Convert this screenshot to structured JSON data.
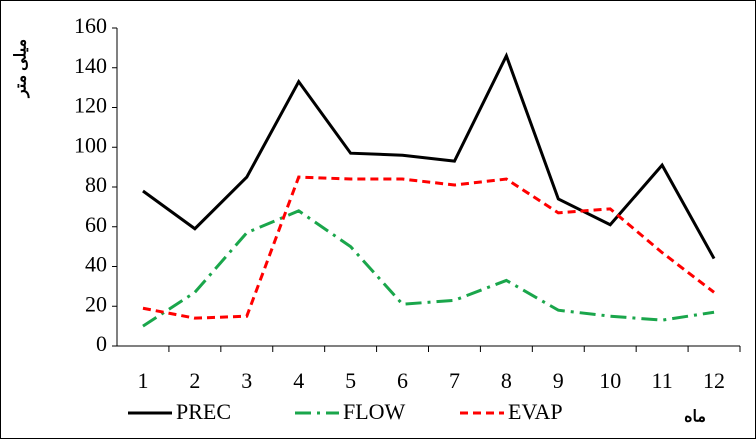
{
  "chart_data": {
    "type": "line",
    "y_label": "میلی متر",
    "x_label": "ماه",
    "categories": [
      "1",
      "2",
      "3",
      "4",
      "5",
      "6",
      "7",
      "8",
      "9",
      "10",
      "11",
      "12"
    ],
    "series": [
      {
        "name": "PREC",
        "color": "#000000",
        "style": "solid",
        "values": [
          78,
          59,
          85,
          133,
          97,
          96,
          93,
          146,
          74,
          61,
          91,
          44
        ]
      },
      {
        "name": "FLOW",
        "color": "#1aa64b",
        "style": "dashdot",
        "values": [
          10,
          27,
          57,
          68,
          50,
          21,
          23,
          33,
          18,
          15,
          13,
          17
        ]
      },
      {
        "name": "EVAP",
        "color": "#ff0000",
        "style": "dash",
        "values": [
          19,
          14,
          15,
          85,
          84,
          84,
          81,
          84,
          67,
          69,
          47,
          27
        ]
      }
    ],
    "ylim": [
      0,
      160
    ],
    "yticks": [
      0,
      20,
      40,
      60,
      80,
      100,
      120,
      140,
      160
    ],
    "grid": false,
    "legend": "bottom"
  }
}
